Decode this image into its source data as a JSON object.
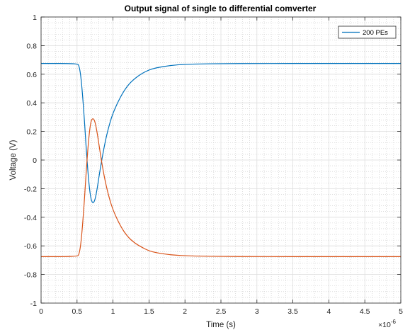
{
  "chart_data": {
    "type": "line",
    "title": "Output signal of single to differential comverter",
    "xlabel": "Time (s)",
    "ylabel": "Voltage (V)",
    "x_exponent_label": "×10",
    "x_exponent_power": "-6",
    "xlim": [
      0,
      5
    ],
    "ylim": [
      -1,
      1
    ],
    "xticks": [
      0,
      0.5,
      1,
      1.5,
      2,
      2.5,
      3,
      3.5,
      4,
      4.5,
      5
    ],
    "xtick_labels": [
      "0",
      "0.5",
      "1",
      "1.5",
      "2",
      "2.5",
      "3",
      "3.5",
      "4",
      "4.5",
      "5"
    ],
    "yticks": [
      -1,
      -0.8,
      -0.6,
      -0.4,
      -0.2,
      0,
      0.2,
      0.4,
      0.6,
      0.8,
      1
    ],
    "ytick_labels": [
      "-1",
      "-0.8",
      "-0.6",
      "-0.4",
      "-0.2",
      "0",
      "0.2",
      "0.4",
      "0.6",
      "0.8",
      "1"
    ],
    "grid": true,
    "minor_grid": true,
    "legend": {
      "position": "top-right",
      "entries": [
        "200 PEs"
      ]
    },
    "series": [
      {
        "name": "200 PEs",
        "color": "#0072BD",
        "x": [
          0,
          0.5,
          0.53,
          0.56,
          0.6,
          0.63,
          0.66,
          0.69,
          0.72,
          0.75,
          0.78,
          0.81,
          0.85,
          0.9,
          0.95,
          1.0,
          1.1,
          1.2,
          1.3,
          1.4,
          1.5,
          1.6,
          1.8,
          2.0,
          2.2,
          2.5,
          3.0,
          4.0,
          5.0
        ],
        "y": [
          0.675,
          0.675,
          0.66,
          0.56,
          0.3,
          0.06,
          -0.14,
          -0.27,
          -0.305,
          -0.28,
          -0.2,
          -0.1,
          0.02,
          0.15,
          0.25,
          0.33,
          0.44,
          0.52,
          0.57,
          0.605,
          0.63,
          0.645,
          0.662,
          0.669,
          0.672,
          0.674,
          0.675,
          0.675,
          0.675
        ]
      },
      {
        "name": "",
        "color": "#D95319",
        "x": [
          0,
          0.5,
          0.53,
          0.56,
          0.6,
          0.63,
          0.66,
          0.69,
          0.72,
          0.75,
          0.78,
          0.81,
          0.85,
          0.9,
          0.95,
          1.0,
          1.1,
          1.2,
          1.3,
          1.4,
          1.5,
          1.6,
          1.8,
          2.0,
          2.2,
          2.5,
          3.0,
          4.0,
          5.0
        ],
        "y": [
          -0.675,
          -0.675,
          -0.66,
          -0.56,
          -0.3,
          -0.06,
          0.14,
          0.27,
          0.295,
          0.27,
          0.19,
          0.09,
          -0.04,
          -0.17,
          -0.27,
          -0.35,
          -0.46,
          -0.535,
          -0.58,
          -0.61,
          -0.635,
          -0.648,
          -0.663,
          -0.669,
          -0.672,
          -0.674,
          -0.675,
          -0.675,
          -0.675
        ]
      }
    ]
  }
}
